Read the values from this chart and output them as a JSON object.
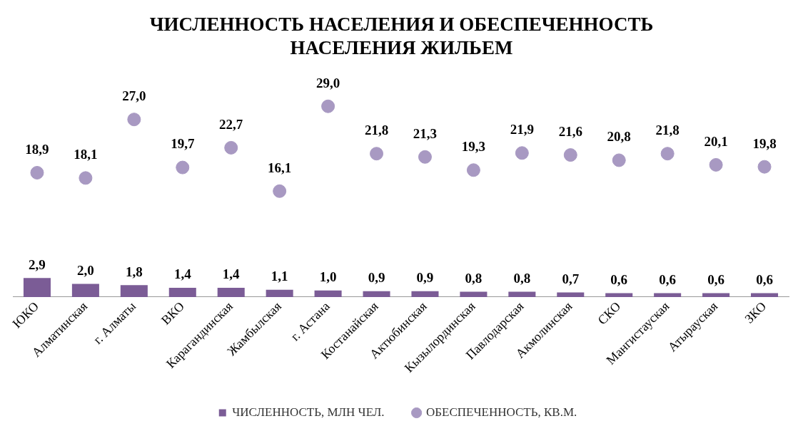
{
  "chart_data": {
    "type": "bar",
    "title": "ЧИСЛЕННОСТЬ НАСЕЛЕНИЯ И ОБЕСПЕЧЕННОСТЬ НАСЕЛЕНИЯ ЖИЛЬЕМ",
    "categories": [
      "ЮКО",
      "Алматинская",
      "г. Алматы",
      "ВКО",
      "Карагандинская",
      "Жамбылская",
      "г. Астана",
      "Костанайская",
      "Актюбинская",
      "Кызылординская",
      "Павлодарская",
      "Акмолинская",
      "СКО",
      "Мангистауская",
      "Атырауская",
      "ЗКО"
    ],
    "series": [
      {
        "name": "ЧИСЛЕННОСТЬ, МЛН ЧЕЛ.",
        "color": "#7b5c96",
        "values": [
          2.9,
          2.0,
          1.8,
          1.4,
          1.4,
          1.1,
          1.0,
          0.9,
          0.9,
          0.8,
          0.8,
          0.7,
          0.6,
          0.6,
          0.6,
          0.6
        ],
        "value_labels": [
          "2,9",
          "2,0",
          "1,8",
          "1,4",
          "1,4",
          "1,1",
          "1,0",
          "0,9",
          "0,9",
          "0,8",
          "0,8",
          "0,7",
          "0,6",
          "0,6",
          "0,6",
          "0,6"
        ]
      },
      {
        "name": "ОБЕСПЕЧЕННОСТЬ, КВ.М.",
        "type": "scatter",
        "color": "#a899c2",
        "values": [
          18.9,
          18.1,
          27.0,
          19.7,
          22.7,
          16.1,
          29.0,
          21.8,
          21.3,
          19.3,
          21.9,
          21.6,
          20.8,
          21.8,
          20.1,
          19.8
        ],
        "value_labels": [
          "18,9",
          "18,1",
          "27,0",
          "19,7",
          "22,7",
          "16,1",
          "29,0",
          "21,8",
          "21,3",
          "19,3",
          "21,9",
          "21,6",
          "20,8",
          "21,8",
          "20,1",
          "19,8"
        ]
      }
    ],
    "tick_labels": "x",
    "legend": "bottom",
    "grid": false,
    "marker": "circle"
  }
}
